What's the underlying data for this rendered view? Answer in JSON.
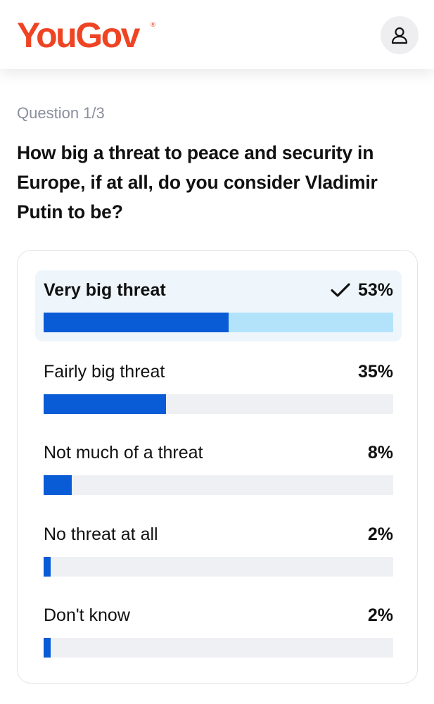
{
  "header": {
    "logo_text": "YouGov",
    "logo_mark": "®",
    "brand_color": "#ee4423",
    "account_icon": "user-icon"
  },
  "survey": {
    "question_number": "Question 1/3",
    "question": "How big a threat to peace and security in Europe, if at all, do you consider Vladimir Putin to be?",
    "options": [
      {
        "label": "Very big threat",
        "percent_text": "53%",
        "value": 53,
        "selected": true
      },
      {
        "label": "Fairly big threat",
        "percent_text": "35%",
        "value": 35,
        "selected": false
      },
      {
        "label": "Not much of a threat",
        "percent_text": "8%",
        "value": 8,
        "selected": false
      },
      {
        "label": "No threat at all",
        "percent_text": "2%",
        "value": 2,
        "selected": false
      },
      {
        "label": "Don't know",
        "percent_text": "2%",
        "value": 2,
        "selected": false
      }
    ]
  },
  "colors": {
    "bar_fill": "#0a5bd6",
    "selected_track": "#b3e3fb",
    "track": "#eef0f3",
    "selected_bg": "#eef6fc"
  }
}
